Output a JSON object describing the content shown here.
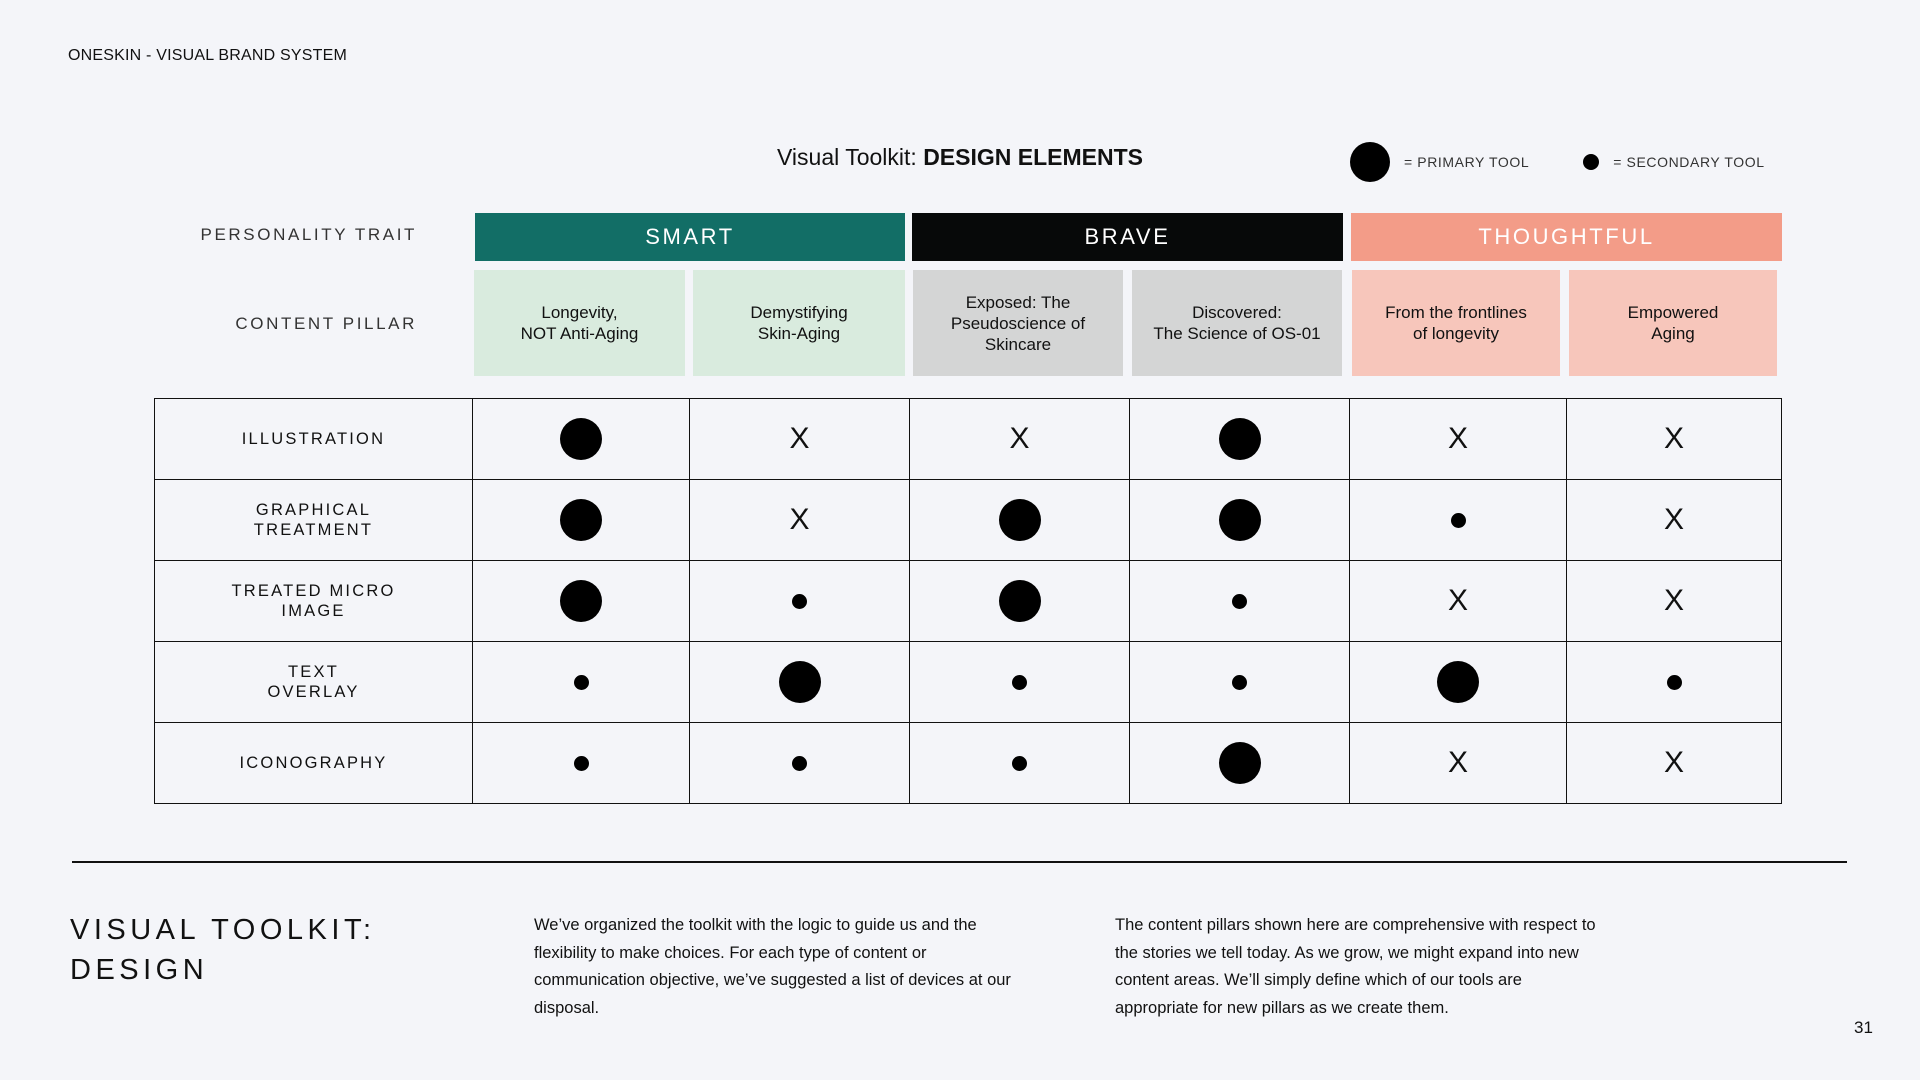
{
  "header": {
    "brand": "ONESKIN - VISUAL BRAND SYSTEM"
  },
  "title": {
    "prefix": "Visual Toolkit: ",
    "bold": "DESIGN ELEMENTS"
  },
  "legend": {
    "primary_label": "= PRIMARY TOOL",
    "secondary_label": "= SECONDARY TOOL"
  },
  "labels": {
    "personality_trait": "PERSONALITY TRAIT",
    "content_pillar": "CONTENT PILLAR"
  },
  "traits": [
    {
      "label": "SMART",
      "color": "#126e66"
    },
    {
      "label": "BRAVE",
      "color": "#070909"
    },
    {
      "label": "THOUGHTFUL",
      "color": "#f39c88"
    }
  ],
  "pillars": [
    {
      "label": "Longevity,\nNOT Anti-Aging",
      "color": "#d9ebde"
    },
    {
      "label": "Demystifying\nSkin-Aging",
      "color": "#d9ebde"
    },
    {
      "label": "Exposed: The\nPseudoscience of\nSkincare",
      "color": "#d4d5d5"
    },
    {
      "label": "Discovered:\nThe Science of OS-01",
      "color": "#d4d5d5"
    },
    {
      "label": "From the frontlines\nof longevity",
      "color": "#f7c6bb"
    },
    {
      "label": "Empowered\nAging",
      "color": "#f7c6bb"
    }
  ],
  "matrix": {
    "rows": [
      {
        "label": "ILLUSTRATION",
        "cells": [
          "primary",
          "x",
          "x",
          "primary",
          "x",
          "x"
        ]
      },
      {
        "label": "GRAPHICAL\nTREATMENT",
        "cells": [
          "primary",
          "x",
          "primary",
          "primary",
          "secondary",
          "x"
        ]
      },
      {
        "label": "TREATED MICRO\nIMAGE",
        "cells": [
          "primary",
          "secondary",
          "primary",
          "secondary",
          "x",
          "x"
        ]
      },
      {
        "label": "TEXT\nOVERLAY",
        "cells": [
          "secondary",
          "primary",
          "secondary",
          "secondary",
          "primary",
          "secondary"
        ]
      },
      {
        "label": "ICONOGRAPHY",
        "cells": [
          "secondary",
          "secondary",
          "secondary",
          "primary",
          "x",
          "x"
        ]
      }
    ],
    "x_glyph": "X"
  },
  "footer": {
    "title": "VISUAL TOOLKIT:\nDESIGN",
    "paragraph1": "We’ve organized the toolkit with the logic to guide us and the flexibility to make choices. For each type of content or communication objective, we’ve suggested a list of devices at our disposal.",
    "paragraph2": "The content pillars shown here are comprehensive with respect to the stories we tell today. As we grow, we might expand into new content areas. We’ll simply define which of our tools are appropriate for new pillars as we create them.",
    "page_number": "31"
  }
}
